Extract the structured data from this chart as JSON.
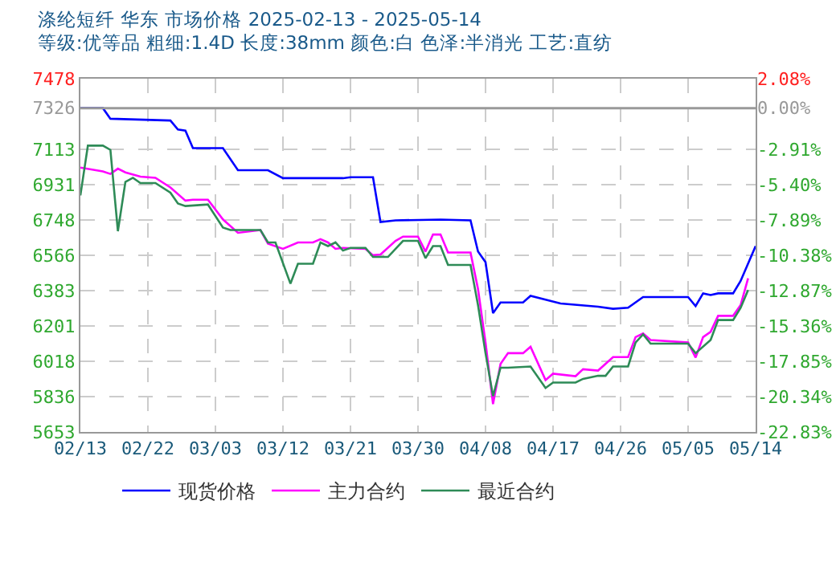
{
  "chart_data": {
    "type": "line",
    "title": "涤纶短纤 华东 市场价格 2025-02-13 - 2025-05-14",
    "subtitle": "等级:优等品 粗细:1.4D 长度:38mm 颜色:白 色泽:半消光 工艺:直纺",
    "series": [
      {
        "name": "现货价格",
        "color": "#0000ff",
        "x": [
          "2025-02-13",
          "2025-02-16",
          "2025-02-17",
          "2025-02-25",
          "2025-02-26",
          "2025-02-27",
          "2025-02-28",
          "2025-03-04",
          "2025-03-06",
          "2025-03-10",
          "2025-03-12",
          "2025-03-20",
          "2025-03-21",
          "2025-03-24",
          "2025-03-25",
          "2025-03-27",
          "2025-04-02",
          "2025-04-06",
          "2025-04-07",
          "2025-04-08",
          "2025-04-09",
          "2025-04-10",
          "2025-04-13",
          "2025-04-14",
          "2025-04-18",
          "2025-04-23",
          "2025-04-25",
          "2025-04-27",
          "2025-04-29",
          "2025-05-05",
          "2025-05-06",
          "2025-05-07",
          "2025-05-08",
          "2025-05-09",
          "2025-05-11",
          "2025-05-12",
          "2025-05-14"
        ],
        "values": [
          7326,
          7326,
          7271,
          7262,
          7215,
          7210,
          7119,
          7119,
          7005,
          7005,
          6964,
          6964,
          6969,
          6969,
          6737,
          6746,
          6750,
          6746,
          6585,
          6530,
          6267,
          6322,
          6322,
          6356,
          6317,
          6300,
          6289,
          6295,
          6350,
          6350,
          6303,
          6369,
          6360,
          6369,
          6369,
          6433,
          6613
        ]
      },
      {
        "name": "主力合约",
        "color": "#ff00ff",
        "x": [
          "2025-02-13",
          "2025-02-16",
          "2025-02-17",
          "2025-02-18",
          "2025-02-19",
          "2025-02-21",
          "2025-02-23",
          "2025-02-25",
          "2025-02-27",
          "2025-02-28",
          "2025-03-02",
          "2025-03-04",
          "2025-03-06",
          "2025-03-09",
          "2025-03-10",
          "2025-03-12",
          "2025-03-14",
          "2025-03-16",
          "2025-03-17",
          "2025-03-18",
          "2025-03-19",
          "2025-03-20",
          "2025-03-23",
          "2025-03-24",
          "2025-03-25",
          "2025-03-27",
          "2025-03-28",
          "2025-03-30",
          "2025-03-31",
          "2025-04-01",
          "2025-04-02",
          "2025-04-03",
          "2025-04-06",
          "2025-04-07",
          "2025-04-08",
          "2025-04-09",
          "2025-04-10",
          "2025-04-11",
          "2025-04-13",
          "2025-04-14",
          "2025-04-16",
          "2025-04-17",
          "2025-04-20",
          "2025-04-21",
          "2025-04-23",
          "2025-04-25",
          "2025-04-27",
          "2025-04-28",
          "2025-04-29",
          "2025-04-30",
          "2025-05-05",
          "2025-05-06",
          "2025-05-07",
          "2025-05-08",
          "2025-05-09",
          "2025-05-11",
          "2025-05-12",
          "2025-05-13"
        ],
        "values": [
          7019,
          6999,
          6986,
          7013,
          6994,
          6972,
          6966,
          6916,
          6848,
          6853,
          6853,
          6751,
          6682,
          6696,
          6626,
          6599,
          6632,
          6632,
          6649,
          6632,
          6599,
          6604,
          6599,
          6566,
          6570,
          6640,
          6662,
          6662,
          6585,
          6673,
          6673,
          6580,
          6580,
          6391,
          6115,
          5797,
          6004,
          6060,
          6060,
          6093,
          5921,
          5954,
          5941,
          5977,
          5970,
          6040,
          6040,
          6143,
          6162,
          6128,
          6115,
          6037,
          6143,
          6170,
          6253,
          6253,
          6308,
          6447
        ]
      },
      {
        "name": "最近合约",
        "color": "#2e8b57",
        "x": [
          "2025-02-13",
          "2025-02-14",
          "2025-02-16",
          "2025-02-17",
          "2025-02-18",
          "2025-02-19",
          "2025-02-20",
          "2025-02-21",
          "2025-02-23",
          "2025-02-25",
          "2025-02-26",
          "2025-02-27",
          "2025-03-02",
          "2025-03-04",
          "2025-03-05",
          "2025-03-09",
          "2025-03-10",
          "2025-03-11",
          "2025-03-13",
          "2025-03-14",
          "2025-03-16",
          "2025-03-17",
          "2025-03-18",
          "2025-03-19",
          "2025-03-20",
          "2025-03-21",
          "2025-03-23",
          "2025-03-24",
          "2025-03-26",
          "2025-03-28",
          "2025-03-30",
          "2025-03-31",
          "2025-04-01",
          "2025-04-02",
          "2025-04-03",
          "2025-04-06",
          "2025-04-07",
          "2025-04-08",
          "2025-04-09",
          "2025-04-10",
          "2025-04-11",
          "2025-04-14",
          "2025-04-16",
          "2025-04-17",
          "2025-04-20",
          "2025-04-21",
          "2025-04-23",
          "2025-04-24",
          "2025-04-25",
          "2025-04-27",
          "2025-04-28",
          "2025-04-29",
          "2025-04-30",
          "2025-05-05",
          "2025-05-06",
          "2025-05-08",
          "2025-05-09",
          "2025-05-11",
          "2025-05-12",
          "2025-05-13"
        ],
        "values": [
          6875,
          7132,
          7132,
          7110,
          6690,
          6945,
          6966,
          6939,
          6939,
          6889,
          6833,
          6820,
          6828,
          6709,
          6696,
          6696,
          6632,
          6632,
          6419,
          6522,
          6522,
          6632,
          6613,
          6632,
          6590,
          6604,
          6604,
          6557,
          6557,
          6640,
          6640,
          6551,
          6613,
          6613,
          6516,
          6516,
          6308,
          6060,
          5838,
          5985,
          5985,
          5991,
          5880,
          5908,
          5908,
          5927,
          5943,
          5943,
          5991,
          5991,
          6115,
          6157,
          6109,
          6109,
          6060,
          6128,
          6231,
          6231,
          6294,
          6386
        ]
      }
    ],
    "xlim": [
      "2025-02-13",
      "2025-05-14"
    ],
    "xticks": [
      {
        "value": "2025-02-13",
        "label": "02/13"
      },
      {
        "value": "2025-02-22",
        "label": "02/22"
      },
      {
        "value": "2025-03-03",
        "label": "03/03"
      },
      {
        "value": "2025-03-12",
        "label": "03/12"
      },
      {
        "value": "2025-03-21",
        "label": "03/21"
      },
      {
        "value": "2025-03-30",
        "label": "03/30"
      },
      {
        "value": "2025-04-08",
        "label": "04/08"
      },
      {
        "value": "2025-04-17",
        "label": "04/17"
      },
      {
        "value": "2025-04-26",
        "label": "04/26"
      },
      {
        "value": "2025-05-05",
        "label": "05/05"
      },
      {
        "value": "2025-05-14",
        "label": "05/14"
      }
    ],
    "ylim": [
      5653,
      7478
    ],
    "yticks": [
      5653,
      5836,
      6018,
      6201,
      6383,
      6566,
      6748,
      6931,
      7113,
      7326,
      7478
    ],
    "y2lim": [
      -22.83,
      2.08
    ],
    "y2ticks": [
      {
        "value": -22.83,
        "label": "-22.83%"
      },
      {
        "value": -20.34,
        "label": "-20.34%"
      },
      {
        "value": -17.85,
        "label": "-17.85%"
      },
      {
        "value": -15.36,
        "label": "-15.36%"
      },
      {
        "value": -12.87,
        "label": "-12.87%"
      },
      {
        "value": -10.38,
        "label": "-10.38%"
      },
      {
        "value": -7.89,
        "label": "-7.89%"
      },
      {
        "value": -5.4,
        "label": "-5.40%"
      },
      {
        "value": -2.91,
        "label": "-2.91%"
      },
      {
        "value": 0,
        "label": "0.00%"
      },
      {
        "value": 2.08,
        "label": "2.08%"
      }
    ],
    "ref_lines": [
      {
        "axis": "y",
        "value": 7326,
        "color": "#999999",
        "line_style": "solid"
      }
    ],
    "grid": true,
    "legend": "bottom",
    "marker": "none",
    "line_style": "solid"
  }
}
